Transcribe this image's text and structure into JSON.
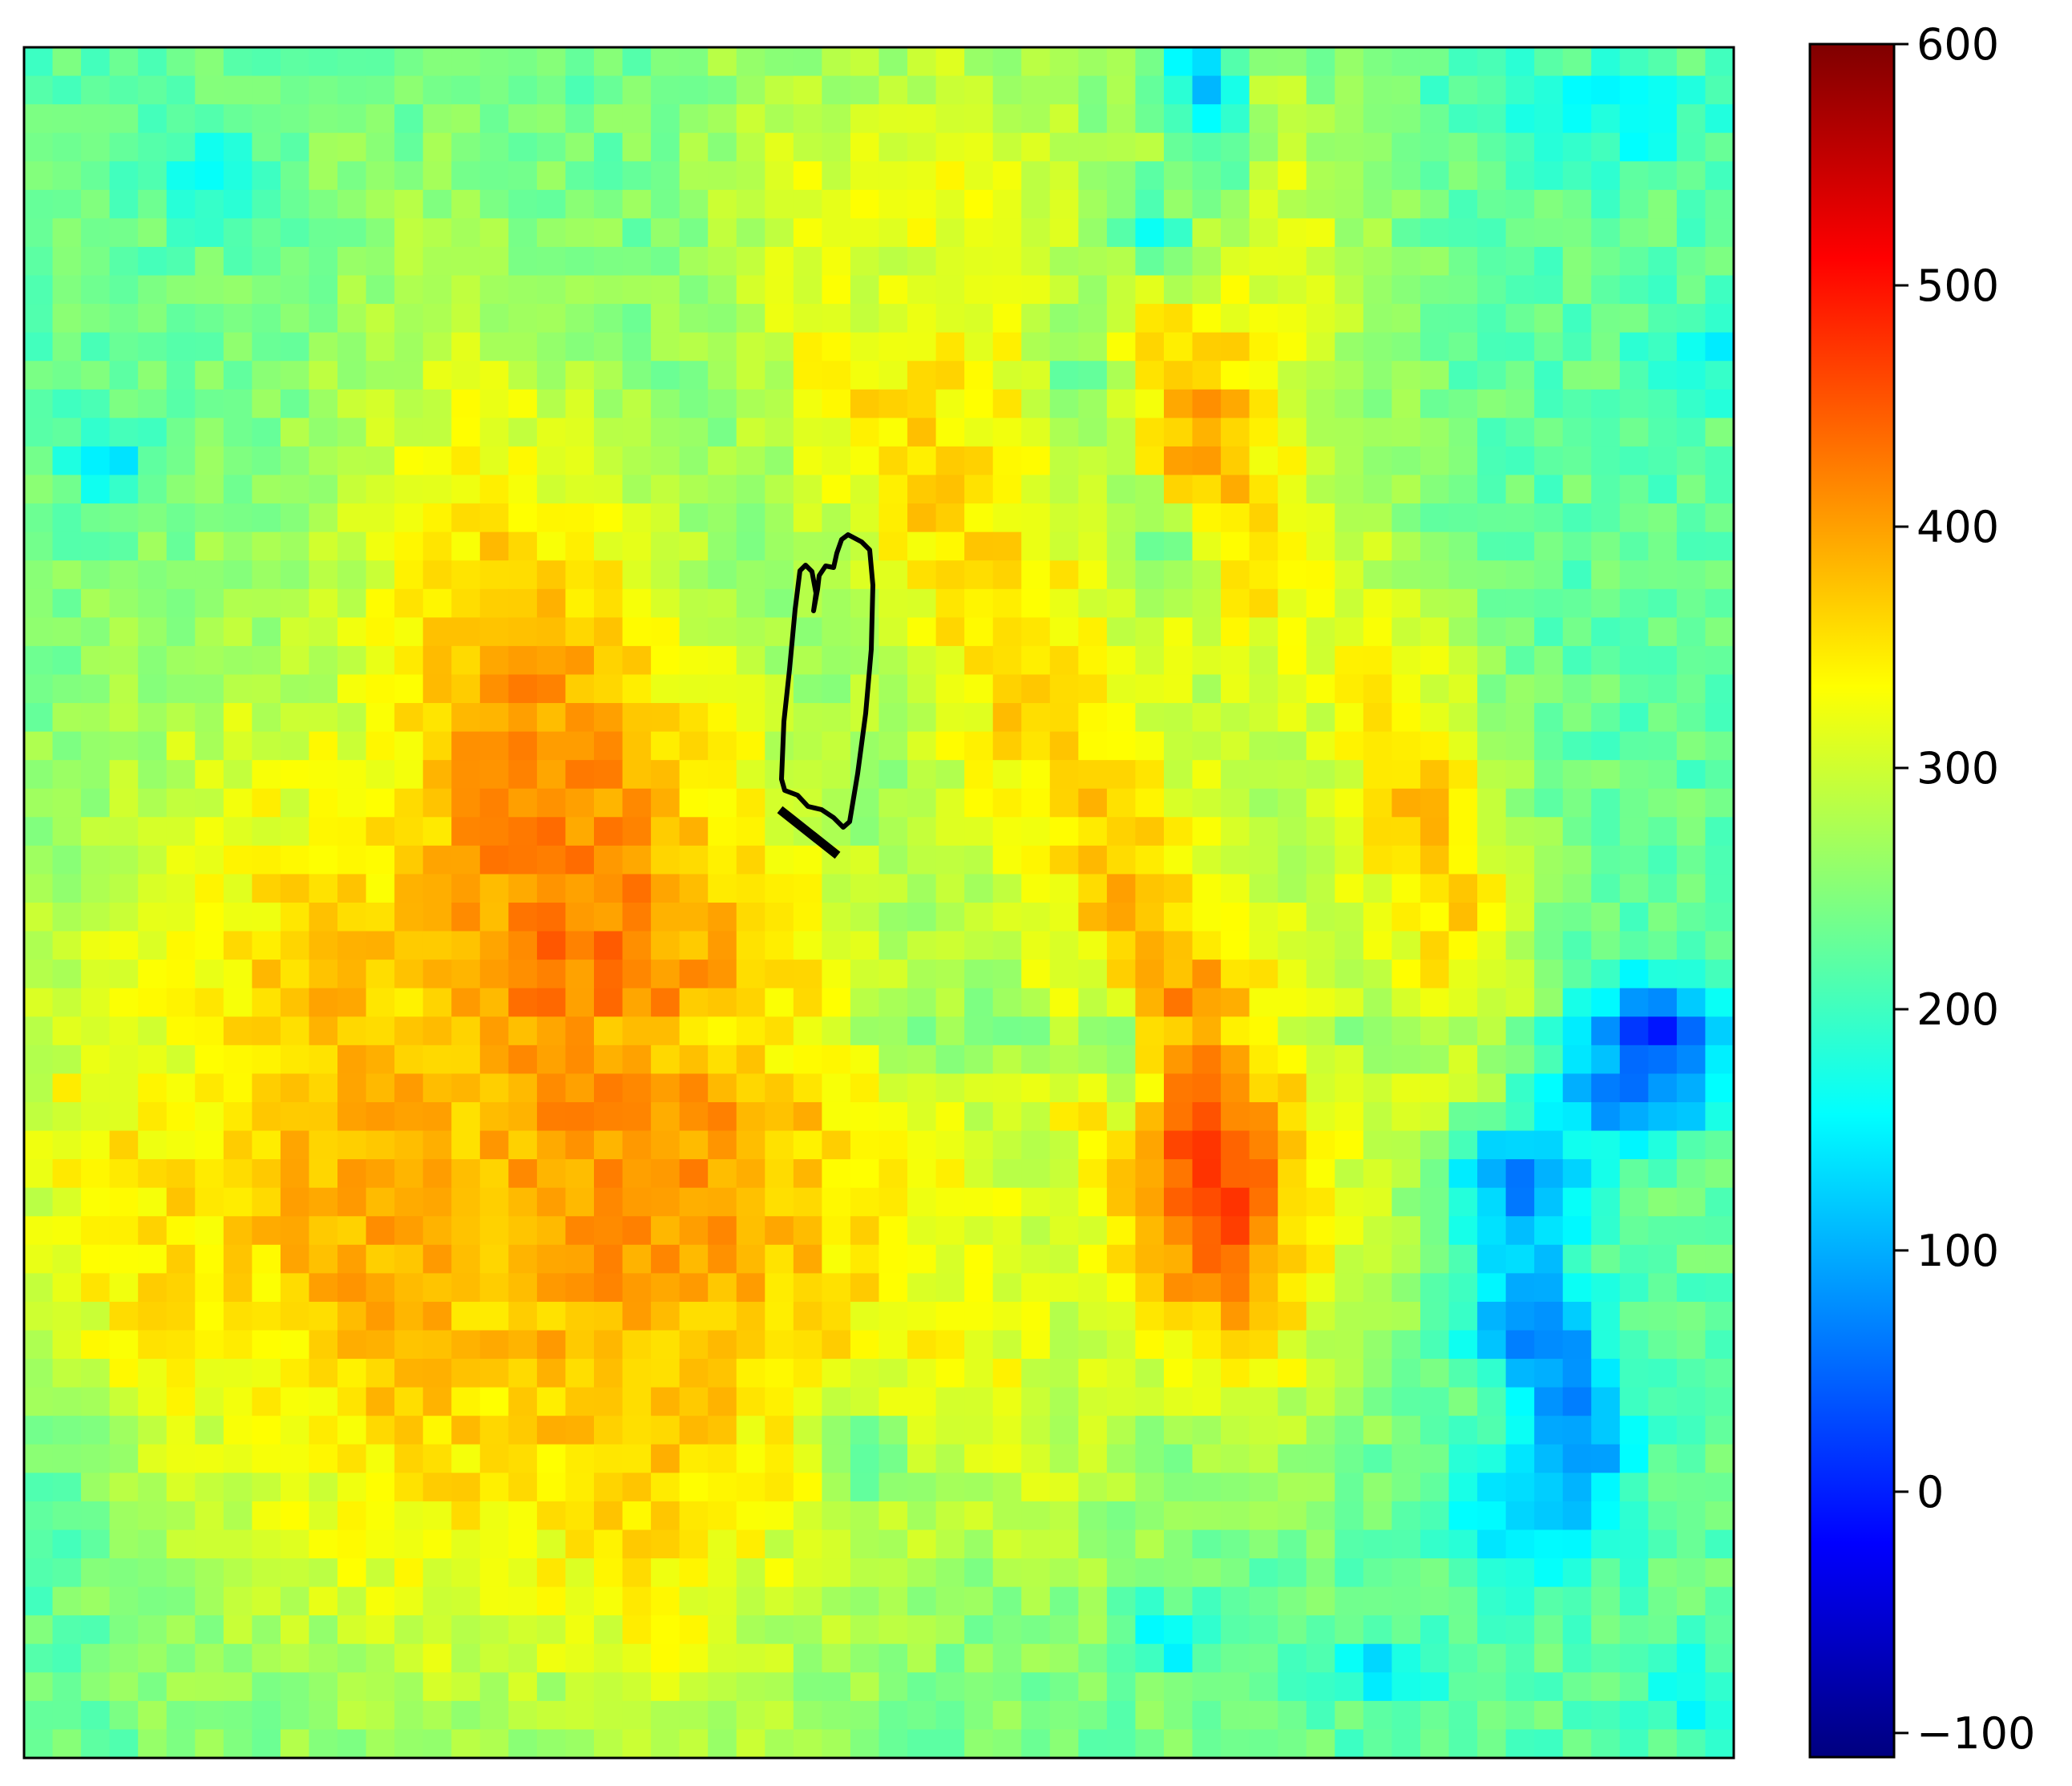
{
  "chart_data": {
    "type": "heatmap",
    "title": "",
    "xlabel": "",
    "ylabel": "",
    "grid": false,
    "axis_ticks_visible": false,
    "colormap": "jet",
    "grid_shape": {
      "rows": 60,
      "cols": 60
    },
    "value_range": [
      -110,
      600
    ],
    "value_description": "Field mostly 150–350; warm diagonal ridges (~300–400) trending NNE; local lows (~0–120) near top-center, right-middle and lower-right.",
    "colorbar": {
      "position": "right",
      "vmin": -110,
      "vmax": 600,
      "ticks": [
        -100,
        0,
        100,
        200,
        300,
        400,
        500,
        600
      ],
      "tick_labels": [
        "−100",
        "0",
        "100",
        "200",
        "300",
        "400",
        "500",
        "600"
      ]
    },
    "overlays": [
      {
        "type": "outline",
        "color": "#000000",
        "description": "closed black outline (footprint polygon)"
      },
      {
        "type": "line-segment",
        "color": "#000000",
        "description": "short thick black line below outline"
      }
    ]
  }
}
